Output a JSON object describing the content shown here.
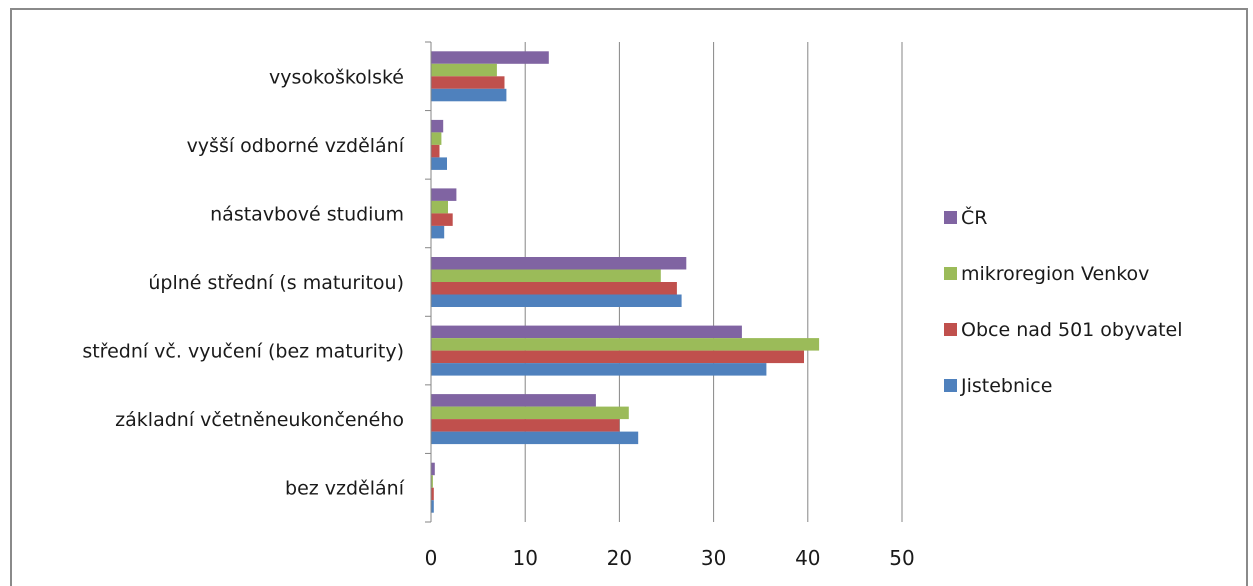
{
  "chart_data": {
    "type": "bar",
    "orientation": "horizontal",
    "categories": [
      "vysokoškolské",
      "vyšší odborné vzdělání",
      "nástavbové studium",
      "úplné střední (s maturitou)",
      "střední vč. vyučení (bez maturity)",
      "základní včetněneukončeného",
      "bez vzdělání"
    ],
    "series": [
      {
        "name": "ČR",
        "color": "#8064A2",
        "values": [
          12.5,
          1.3,
          2.7,
          27.1,
          33.0,
          17.5,
          0.4
        ]
      },
      {
        "name": "mikroregion Venkov",
        "color": "#9BBB59",
        "values": [
          7.0,
          1.1,
          1.8,
          24.4,
          41.2,
          21.0,
          0.2
        ]
      },
      {
        "name": "Obce nad 501 obyvatel",
        "color": "#C0504D",
        "values": [
          7.8,
          0.9,
          2.3,
          26.1,
          39.6,
          20.0,
          0.3
        ]
      },
      {
        "name": "Jistebnice",
        "color": "#4F81BD",
        "values": [
          8.0,
          1.7,
          1.4,
          26.6,
          35.6,
          22.0,
          0.3
        ]
      }
    ],
    "xlim": [
      0,
      50
    ],
    "xticks": [
      0,
      10,
      20,
      30,
      40,
      50
    ],
    "grid": true,
    "legend": {
      "position": "right"
    }
  }
}
